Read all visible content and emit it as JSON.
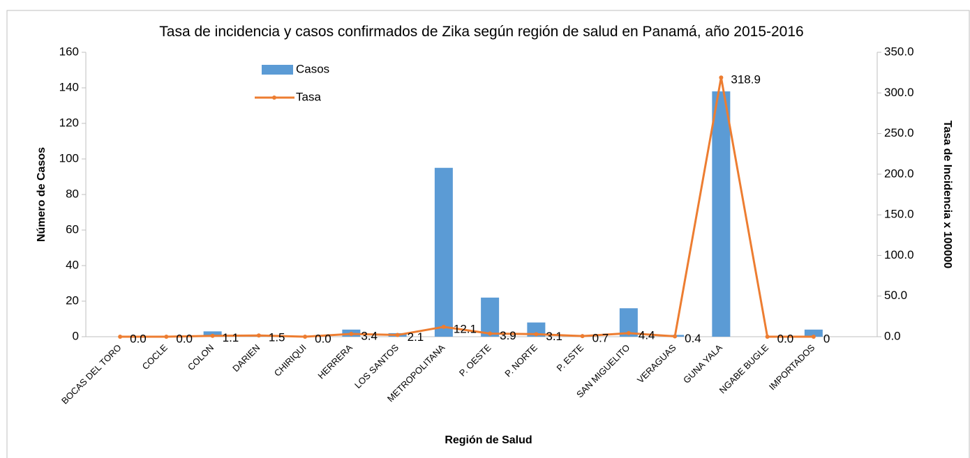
{
  "chart_data": {
    "type": "bar_line",
    "title": "Tasa de incidencia y casos confirmados de Zika según región de salud en Panamá, año 2015-2016",
    "xlabel": "Región de Salud",
    "ylabel": "Número de Casos",
    "y2label": "Tasa de Incidencia x 100000",
    "categories": [
      "BOCAS DEL TORO",
      "COCLE",
      "COLON",
      "DARIEN",
      "CHIRIQUI",
      "HERRERA",
      "LOS SANTOS",
      "METROPOLITANA",
      "P. OESTE",
      "P. NORTE",
      "P. ESTE",
      "SAN MIGUELITO",
      "VERAGUAS",
      "GUNA YALA",
      "NGABE BUGLE",
      "IMPORTADOS"
    ],
    "series": [
      {
        "name": "Casos",
        "type": "bar",
        "color": "#5b9bd5",
        "values": [
          0,
          0,
          3,
          1,
          0,
          4,
          2,
          95,
          22,
          8,
          1,
          16,
          1,
          138,
          0,
          4
        ]
      },
      {
        "name": "Tasa",
        "type": "line",
        "axis": "y2",
        "color": "#ed7d31",
        "values": [
          0,
          0,
          1.1,
          1.5,
          0,
          3.4,
          2.1,
          12.1,
          3.9,
          3.1,
          0.7,
          4.4,
          0.4,
          318.9,
          0,
          0
        ],
        "value_labels": [
          "0.0",
          "0.0",
          "1.1",
          "1.5",
          "0.0",
          "3.4",
          "2.1",
          "12.1",
          "3.9",
          "3.1",
          "0.7",
          "4.4",
          "0.4",
          "318.9",
          "0.0",
          "0"
        ]
      }
    ],
    "ylim": [
      0,
      160
    ],
    "yticks": [
      0,
      20,
      40,
      60,
      80,
      100,
      120,
      140,
      160
    ],
    "y2lim": [
      0,
      350
    ],
    "y2ticks": [
      {
        "value": 0,
        "label": "0.0"
      },
      {
        "value": 50,
        "label": "50.0"
      },
      {
        "value": 100,
        "label": "100.0"
      },
      {
        "value": 150,
        "label": "150.0"
      },
      {
        "value": 200,
        "label": "200.0"
      },
      {
        "value": 250,
        "label": "250.0"
      },
      {
        "value": 300,
        "label": "300.0"
      },
      {
        "value": 350,
        "label": "350.0"
      }
    ]
  }
}
